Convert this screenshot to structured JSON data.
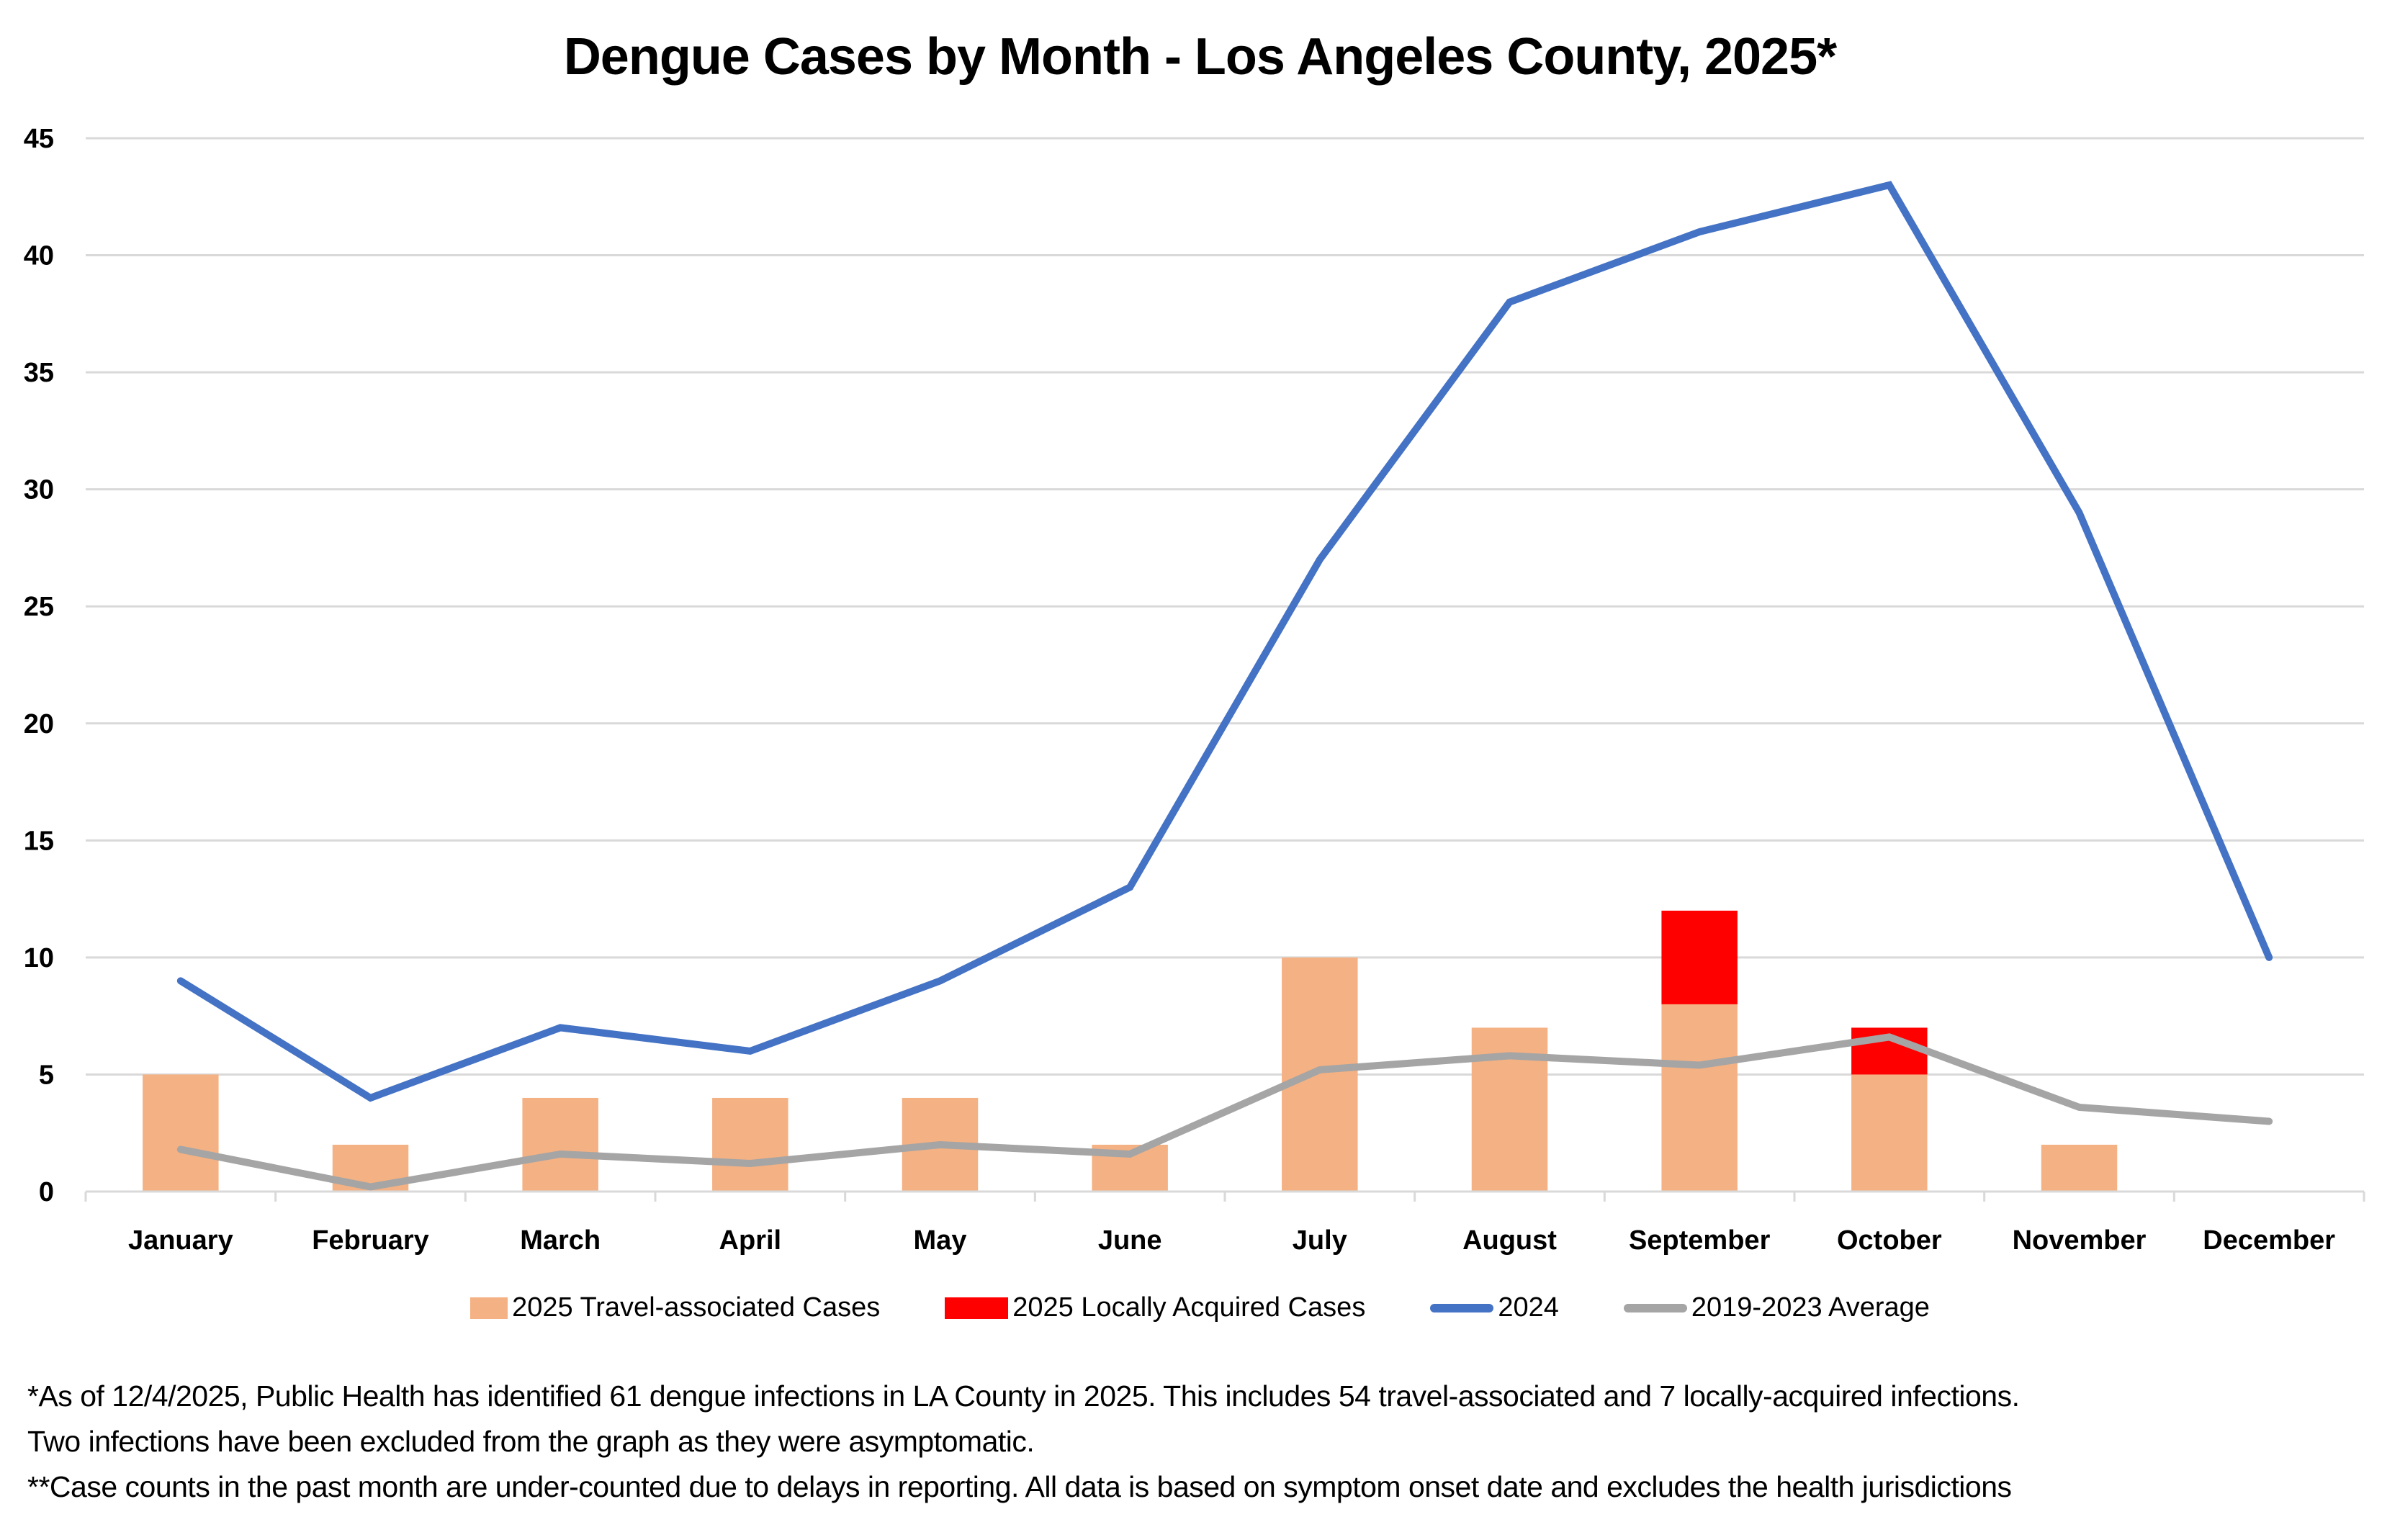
{
  "chart_data": {
    "type": "bar",
    "title": "Dengue Cases by Month - Los Angeles County, 2025*",
    "xlabel": "",
    "ylabel": "",
    "ylim": [
      0,
      45
    ],
    "yticks": [
      "0",
      "5",
      "10",
      "15",
      "20",
      "25",
      "30",
      "35",
      "40",
      "45"
    ],
    "grid": true,
    "legend_position": "bottom",
    "categories": [
      "January",
      "February",
      "March",
      "April",
      "May",
      "June",
      "July",
      "August",
      "September",
      "October",
      "November",
      "December"
    ],
    "series": [
      {
        "name": "2025 Travel-associated Cases",
        "kind": "stacked-bar",
        "color": "#F4B183",
        "values": [
          5,
          2,
          4,
          4,
          4,
          2,
          10,
          7,
          8,
          5,
          2,
          0
        ]
      },
      {
        "name": "2025 Locally Acquired Cases",
        "kind": "stacked-bar",
        "color": "#FF0000",
        "values": [
          0,
          0,
          0,
          0,
          0,
          0,
          0,
          0,
          4,
          2,
          0,
          0
        ]
      },
      {
        "name": "2024",
        "kind": "line",
        "color": "#4472C4",
        "values": [
          9,
          4,
          7,
          6,
          9,
          13,
          27,
          38,
          41,
          43,
          29,
          10
        ]
      },
      {
        "name": "2019-2023 Average",
        "kind": "line",
        "color": "#A5A5A5",
        "values": [
          1.8,
          0.2,
          1.6,
          1.2,
          2.0,
          1.6,
          5.2,
          5.8,
          5.4,
          6.6,
          3.6,
          3.0
        ]
      }
    ],
    "colors": {
      "gridline": "#D9D9D9",
      "axis": "#D9D9D9"
    }
  },
  "footnotes": [
    "*As of 12/4/2025, Public Health has identified 61 dengue infections in LA County in 2025. This includes 54 travel-associated and 7 locally-acquired infections.",
    "Two infections have been excluded from the graph as they were asymptomatic.",
    "**Case counts in the past month are under-counted due to delays in reporting. All data is based on symptom onset date and excludes the health jurisdictions"
  ]
}
